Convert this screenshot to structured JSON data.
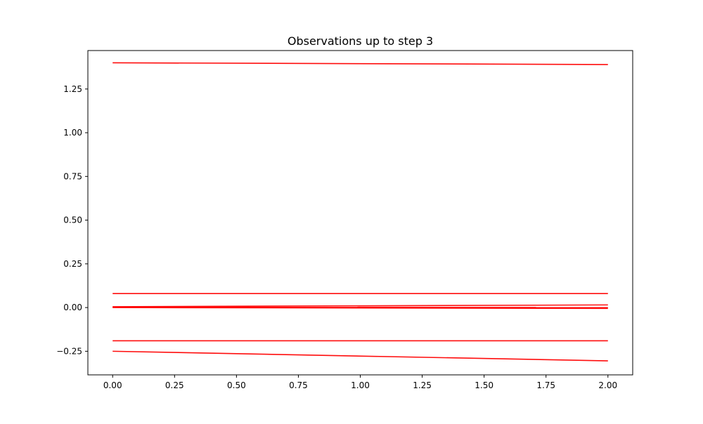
{
  "chart_data": {
    "type": "line",
    "title": "Observations up to step 3",
    "xlabel": "",
    "ylabel": "",
    "xlim": [
      -0.1,
      2.1
    ],
    "ylim": [
      -0.385,
      1.47
    ],
    "xticks": [
      "0.00",
      "0.25",
      "0.50",
      "0.75",
      "1.00",
      "1.25",
      "1.50",
      "1.75",
      "2.00"
    ],
    "yticks": [
      "−0.25",
      "0.00",
      "0.25",
      "0.50",
      "0.75",
      "1.00",
      "1.25"
    ],
    "grid": false,
    "legend": "none",
    "line_color": "#ff0000",
    "x": [
      0,
      2
    ],
    "series": [
      {
        "values": [
          1.4,
          1.39
        ]
      },
      {
        "values": [
          0.08,
          0.08
        ]
      },
      {
        "values": [
          0.005,
          0.015
        ]
      },
      {
        "values": [
          0.0,
          -0.005
        ]
      },
      {
        "values": [
          0.002,
          0.0
        ]
      },
      {
        "values": [
          -0.19,
          -0.19
        ]
      },
      {
        "values": [
          -0.25,
          -0.305
        ]
      }
    ]
  }
}
